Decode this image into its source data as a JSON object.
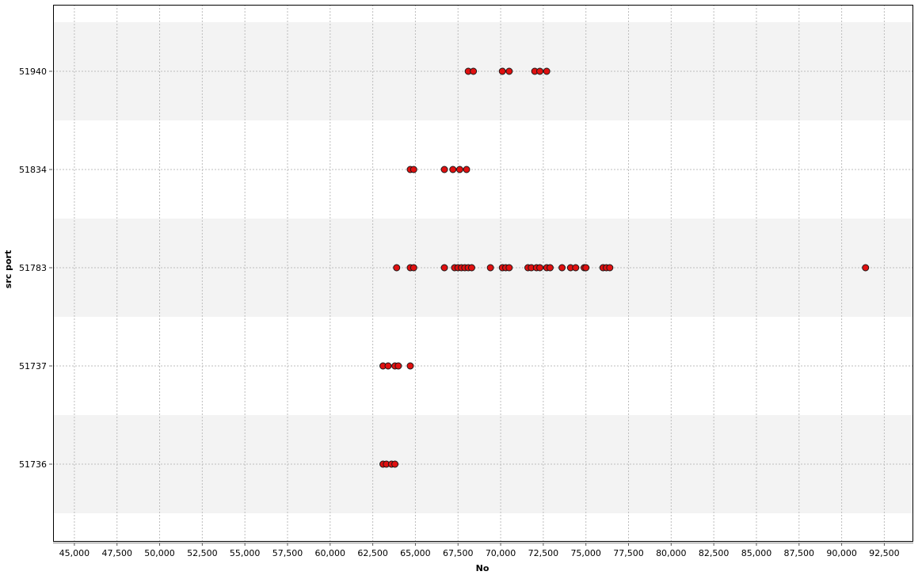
{
  "chart_data": {
    "type": "scatter",
    "title": "",
    "xlabel": "No",
    "ylabel": "src port",
    "xlim": [
      43750,
      94200
    ],
    "x_ticks": [
      45000,
      47500,
      50000,
      52500,
      55000,
      57500,
      60000,
      62500,
      65000,
      67500,
      70000,
      72500,
      75000,
      77500,
      80000,
      82500,
      85000,
      87500,
      90000,
      92500
    ],
    "x_tick_labels": [
      "45,000",
      "47,500",
      "50,000",
      "52,500",
      "55,000",
      "57,500",
      "60,000",
      "62,500",
      "65,000",
      "67,500",
      "70,000",
      "72,500",
      "75,000",
      "77,500",
      "80,000",
      "82,500",
      "85,000",
      "87,500",
      "90,000",
      "92,500"
    ],
    "categories": [
      "51940",
      "51834",
      "51783",
      "51737",
      "51736"
    ],
    "grid": true,
    "banded_rows": true,
    "colors": {
      "point_fill": "#e01010",
      "point_stroke": "#1a1a1a",
      "band": "#f3f3f3",
      "grid": "#bdbdbd",
      "frame": "#000000"
    },
    "series": [
      {
        "category": "51940",
        "x": [
          68100,
          68400,
          70100,
          70500,
          72000,
          72300,
          72700
        ]
      },
      {
        "category": "51834",
        "x": [
          64700,
          64900,
          66700,
          67200,
          67600,
          68000
        ]
      },
      {
        "category": "51783",
        "x": [
          63900,
          64700,
          64900,
          66700,
          67300,
          67500,
          67700,
          67900,
          68100,
          68300,
          69400,
          70100,
          70300,
          70500,
          71600,
          71800,
          72100,
          72300,
          72700,
          72900,
          73600,
          74100,
          74400,
          74900,
          75000,
          76000,
          76200,
          76400,
          91400
        ]
      },
      {
        "category": "51737",
        "x": [
          63100,
          63400,
          63800,
          64000,
          64700
        ]
      },
      {
        "category": "51736",
        "x": [
          63100,
          63300,
          63600,
          63800
        ]
      }
    ]
  }
}
